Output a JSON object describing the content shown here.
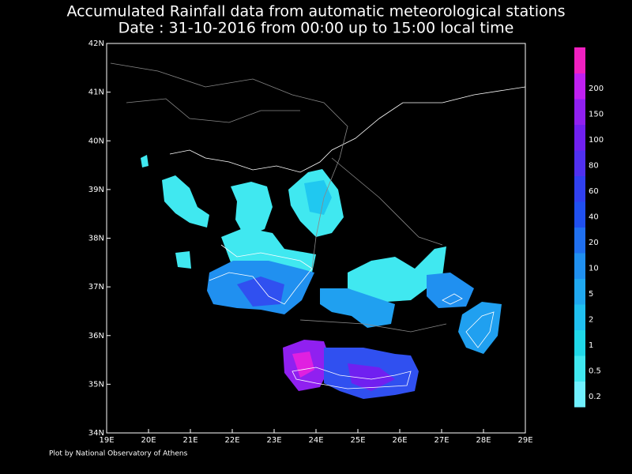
{
  "header": {
    "title": "Accumulated Rainfall data from automatic meteorological stations",
    "subtitle": "Date : 31-10-2016 from 00:00 up to 15:00 local time"
  },
  "map": {
    "lon_labels": [
      "19E",
      "20E",
      "21E",
      "22E",
      "23E",
      "24E",
      "25E",
      "26E",
      "27E",
      "28E",
      "29E"
    ],
    "lat_labels": [
      "34N",
      "35N",
      "36N",
      "37N",
      "38N",
      "39N",
      "40N",
      "41N",
      "42N"
    ]
  },
  "colorbar": {
    "labels": [
      "0.2",
      "0.5",
      "1",
      "2",
      "5",
      "10",
      "20",
      "40",
      "60",
      "80",
      "100",
      "150",
      "200"
    ]
  },
  "footer": {
    "credit": "Plot by National Observatory of Athens"
  }
}
